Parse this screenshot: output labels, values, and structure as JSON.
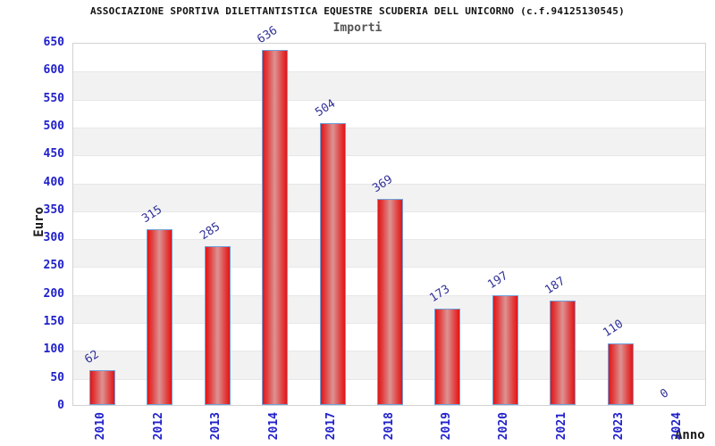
{
  "chart_data": {
    "type": "bar",
    "title": "ASSOCIAZIONE SPORTIVA DILETTANTISTICA EQUESTRE SCUDERIA DELL UNICORNO (c.f.94125130545)",
    "subtitle": "Importi",
    "categories": [
      "2010",
      "2012",
      "2013",
      "2014",
      "2017",
      "2018",
      "2019",
      "2020",
      "2021",
      "2023",
      "2024"
    ],
    "values": [
      62,
      315,
      285,
      636,
      504,
      369,
      173,
      197,
      187,
      110,
      0
    ],
    "xlabel": "Anno",
    "ylabel": "Euro",
    "ylim": [
      0,
      650
    ],
    "ytick_step": 50,
    "legend": "none",
    "grid": "horizontal gridlines every 50 Euro with alternating light-gray bands",
    "colors": {
      "bar_fill": "#e41414",
      "bar_highlight": "#dd9393",
      "bar_border": "#6f9fd8",
      "tick_label": "#2121cc",
      "value_label": "#32329a",
      "axis_label": "#1a1a1a",
      "subtitle": "#555555",
      "band": "#f2f2f2",
      "gridline": "#e7e7e7",
      "plot_border": "#d2d2d2",
      "background": "#ffffff"
    }
  }
}
